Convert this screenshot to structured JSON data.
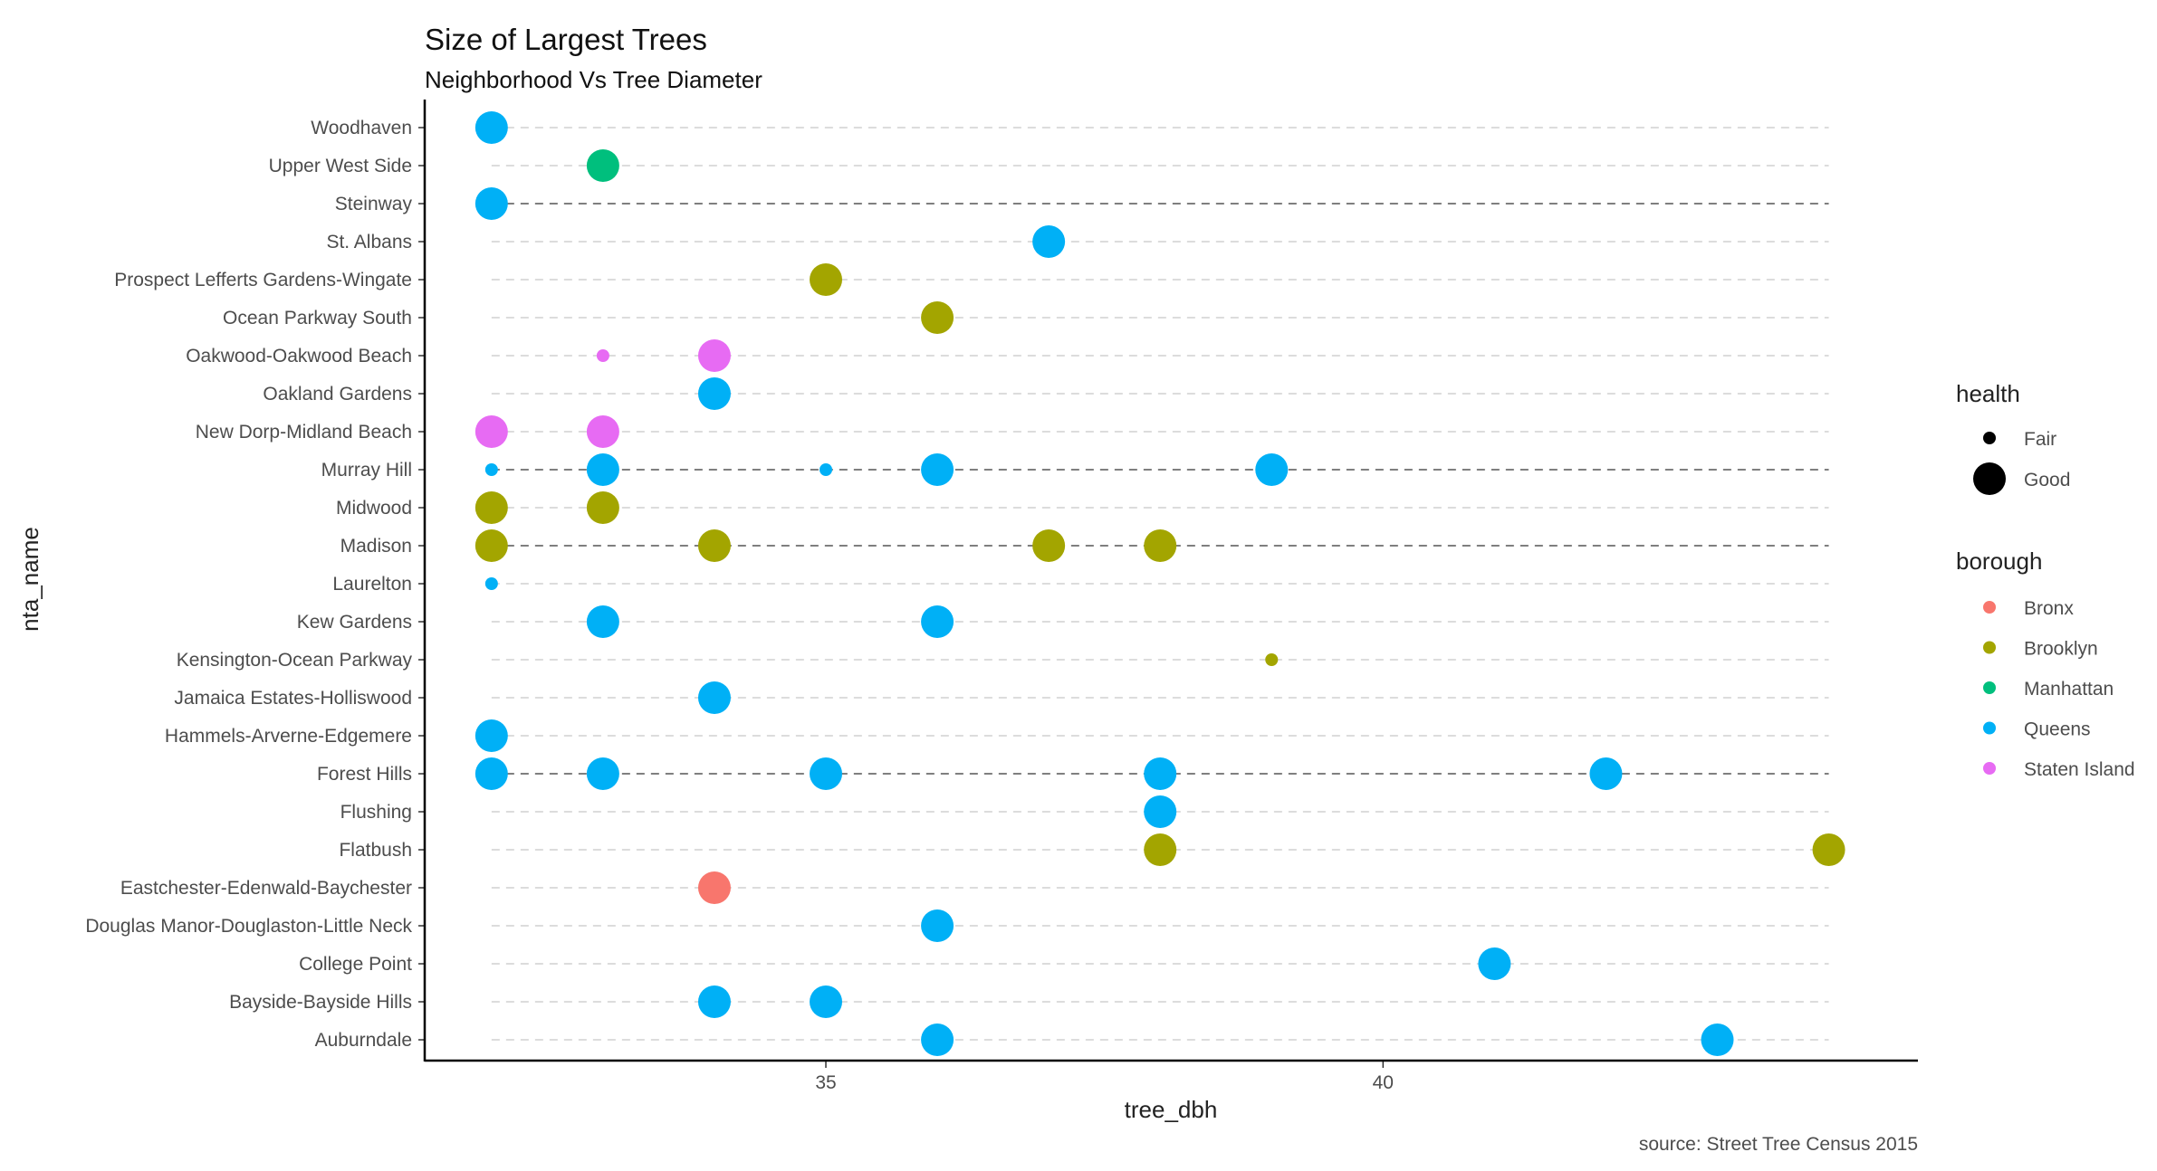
{
  "chart_data": {
    "type": "scatter",
    "title": "Size of Largest Trees",
    "subtitle": "Neighborhood Vs Tree Diameter",
    "xlabel": "tree_dbh",
    "ylabel": "nta_name",
    "caption": "source: Street Tree Census 2015",
    "xlim": [
      31.4,
      44.8
    ],
    "x_ticks": [
      35,
      40
    ],
    "grid": false,
    "categories": [
      "Woodhaven",
      "Upper West Side",
      "Steinway",
      "St. Albans",
      "Prospect Lefferts Gardens-Wingate",
      "Ocean Parkway South",
      "Oakwood-Oakwood Beach",
      "Oakland Gardens",
      "New Dorp-Midland Beach",
      "Murray Hill",
      "Midwood",
      "Madison",
      "Laurelton",
      "Kew Gardens",
      "Kensington-Ocean Parkway",
      "Jamaica Estates-Holliswood",
      "Hammels-Arverne-Edgemere",
      "Forest Hills",
      "Flushing",
      "Flatbush",
      "Eastchester-Edenwald-Baychester",
      "Douglas Manor-Douglaston-Little Neck",
      "College Point",
      "Bayside-Bayside Hills",
      "Auburndale"
    ],
    "dark_lines": [
      "Steinway",
      "Murray Hill",
      "Madison",
      "Forest Hills"
    ],
    "points": [
      {
        "nta": "Woodhaven",
        "x": 32,
        "borough": "Queens",
        "health": "Good"
      },
      {
        "nta": "Upper West Side",
        "x": 33,
        "borough": "Manhattan",
        "health": "Good"
      },
      {
        "nta": "Steinway",
        "x": 32,
        "borough": "Queens",
        "health": "Good"
      },
      {
        "nta": "St. Albans",
        "x": 37,
        "borough": "Queens",
        "health": "Good"
      },
      {
        "nta": "Prospect Lefferts Gardens-Wingate",
        "x": 35,
        "borough": "Brooklyn",
        "health": "Good"
      },
      {
        "nta": "Ocean Parkway South",
        "x": 36,
        "borough": "Brooklyn",
        "health": "Good"
      },
      {
        "nta": "Oakwood-Oakwood Beach",
        "x": 33,
        "borough": "Staten Island",
        "health": "Fair"
      },
      {
        "nta": "Oakwood-Oakwood Beach",
        "x": 34,
        "borough": "Staten Island",
        "health": "Good"
      },
      {
        "nta": "Oakland Gardens",
        "x": 34,
        "borough": "Queens",
        "health": "Good"
      },
      {
        "nta": "New Dorp-Midland Beach",
        "x": 32,
        "borough": "Staten Island",
        "health": "Good"
      },
      {
        "nta": "New Dorp-Midland Beach",
        "x": 33,
        "borough": "Staten Island",
        "health": "Good"
      },
      {
        "nta": "Murray Hill",
        "x": 32,
        "borough": "Queens",
        "health": "Fair"
      },
      {
        "nta": "Murray Hill",
        "x": 33,
        "borough": "Queens",
        "health": "Good"
      },
      {
        "nta": "Murray Hill",
        "x": 35,
        "borough": "Queens",
        "health": "Fair"
      },
      {
        "nta": "Murray Hill",
        "x": 36,
        "borough": "Queens",
        "health": "Good"
      },
      {
        "nta": "Murray Hill",
        "x": 39,
        "borough": "Queens",
        "health": "Good"
      },
      {
        "nta": "Midwood",
        "x": 32,
        "borough": "Brooklyn",
        "health": "Good"
      },
      {
        "nta": "Midwood",
        "x": 33,
        "borough": "Brooklyn",
        "health": "Good"
      },
      {
        "nta": "Madison",
        "x": 32,
        "borough": "Brooklyn",
        "health": "Good"
      },
      {
        "nta": "Madison",
        "x": 34,
        "borough": "Brooklyn",
        "health": "Good"
      },
      {
        "nta": "Madison",
        "x": 37,
        "borough": "Brooklyn",
        "health": "Good"
      },
      {
        "nta": "Madison",
        "x": 38,
        "borough": "Brooklyn",
        "health": "Good"
      },
      {
        "nta": "Laurelton",
        "x": 32,
        "borough": "Queens",
        "health": "Fair"
      },
      {
        "nta": "Kew Gardens",
        "x": 33,
        "borough": "Queens",
        "health": "Good"
      },
      {
        "nta": "Kew Gardens",
        "x": 36,
        "borough": "Queens",
        "health": "Good"
      },
      {
        "nta": "Kensington-Ocean Parkway",
        "x": 39,
        "borough": "Brooklyn",
        "health": "Fair"
      },
      {
        "nta": "Jamaica Estates-Holliswood",
        "x": 34,
        "borough": "Queens",
        "health": "Good"
      },
      {
        "nta": "Hammels-Arverne-Edgemere",
        "x": 32,
        "borough": "Queens",
        "health": "Good"
      },
      {
        "nta": "Forest Hills",
        "x": 32,
        "borough": "Queens",
        "health": "Good"
      },
      {
        "nta": "Forest Hills",
        "x": 33,
        "borough": "Queens",
        "health": "Good"
      },
      {
        "nta": "Forest Hills",
        "x": 35,
        "borough": "Queens",
        "health": "Good"
      },
      {
        "nta": "Forest Hills",
        "x": 38,
        "borough": "Queens",
        "health": "Good"
      },
      {
        "nta": "Forest Hills",
        "x": 42,
        "borough": "Queens",
        "health": "Good"
      },
      {
        "nta": "Flushing",
        "x": 38,
        "borough": "Queens",
        "health": "Good"
      },
      {
        "nta": "Flatbush",
        "x": 38,
        "borough": "Brooklyn",
        "health": "Good"
      },
      {
        "nta": "Flatbush",
        "x": 44,
        "borough": "Brooklyn",
        "health": "Good"
      },
      {
        "nta": "Eastchester-Edenwald-Baychester",
        "x": 34,
        "borough": "Bronx",
        "health": "Good"
      },
      {
        "nta": "Douglas Manor-Douglaston-Little Neck",
        "x": 36,
        "borough": "Queens",
        "health": "Good"
      },
      {
        "nta": "College Point",
        "x": 41,
        "borough": "Queens",
        "health": "Good"
      },
      {
        "nta": "Bayside-Bayside Hills",
        "x": 34,
        "borough": "Queens",
        "health": "Good"
      },
      {
        "nta": "Bayside-Bayside Hills",
        "x": 35,
        "borough": "Queens",
        "health": "Good"
      },
      {
        "nta": "Auburndale",
        "x": 36,
        "borough": "Queens",
        "health": "Good"
      },
      {
        "nta": "Auburndale",
        "x": 43,
        "borough": "Queens",
        "health": "Good"
      }
    ],
    "legend": {
      "placement": "right",
      "health_title": "health",
      "health_levels": [
        "Fair",
        "Good"
      ],
      "borough_title": "borough",
      "borough_levels": [
        "Bronx",
        "Brooklyn",
        "Manhattan",
        "Queens",
        "Staten Island"
      ]
    },
    "colors": {
      "Bronx": "#F8766D",
      "Brooklyn": "#A3A500",
      "Manhattan": "#00BF7D",
      "Queens": "#00B0F6",
      "Staten Island": "#E76BF3"
    }
  }
}
